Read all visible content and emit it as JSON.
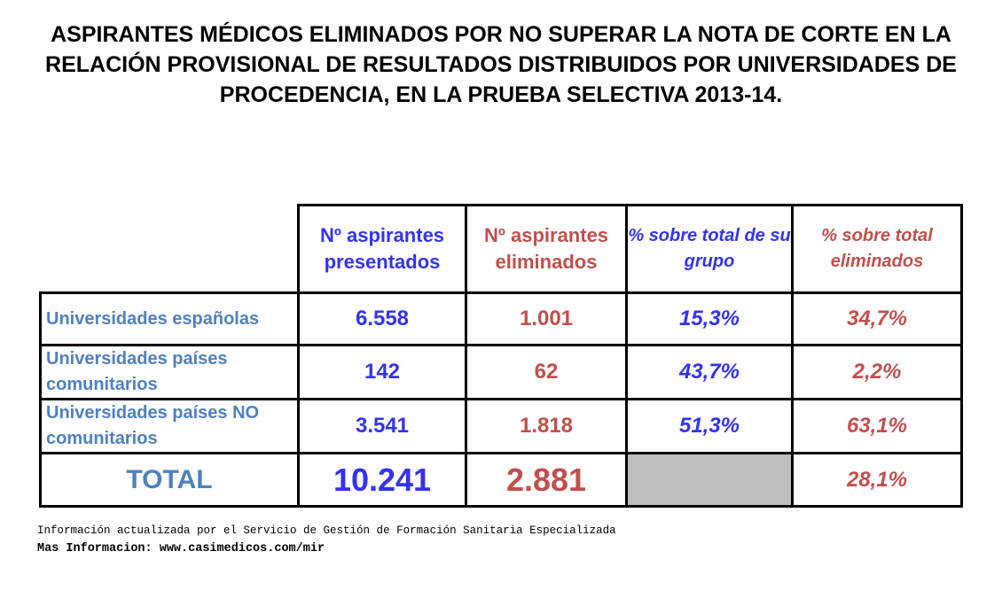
{
  "title": "ASPIRANTES MÉDICOS ELIMINADOS POR NO SUPERAR LA NOTA DE CORTE EN LA RELACIÓN PROVISIONAL DE RESULTADOS DISTRIBUIDOS POR UNIVERSIDADES DE PROCEDENCIA, EN LA PRUEBA SELECTIVA 2013-14.",
  "table": {
    "headers": {
      "presentados": "Nº aspirantes presentados",
      "eliminados": "Nº aspirantes eliminados",
      "pct_grupo": "% sobre total de su grupo",
      "pct_total": "% sobre total eliminados"
    },
    "rows": [
      {
        "label": "Universidades españolas",
        "presentados": "6.558",
        "eliminados": "1.001",
        "pct_grupo": "15,3%",
        "pct_total": "34,7%"
      },
      {
        "label": "Universidades  países comunitarios",
        "presentados": "142",
        "eliminados": "62",
        "pct_grupo": "43,7%",
        "pct_total": "2,2%"
      },
      {
        "label": "Universidades  países NO comunitarios",
        "presentados": "3.541",
        "eliminados": "1.818",
        "pct_grupo": "51,3%",
        "pct_total": "63,1%"
      }
    ],
    "total": {
      "label": "TOTAL",
      "presentados": "10.241",
      "eliminados": "2.881",
      "pct_grupo": "",
      "pct_total": "28,1%"
    }
  },
  "footer": {
    "line1": "Información actualizada por el Servicio de Gestión de Formación Sanitaria Especializada",
    "line2": "Mas Informacion: www.casimedicos.com/mir"
  },
  "colors": {
    "blue_values": "#3333ee",
    "red_values": "#c0504d",
    "row_labels": "#4f81bd",
    "empty_cell": "#bfbfbf"
  }
}
